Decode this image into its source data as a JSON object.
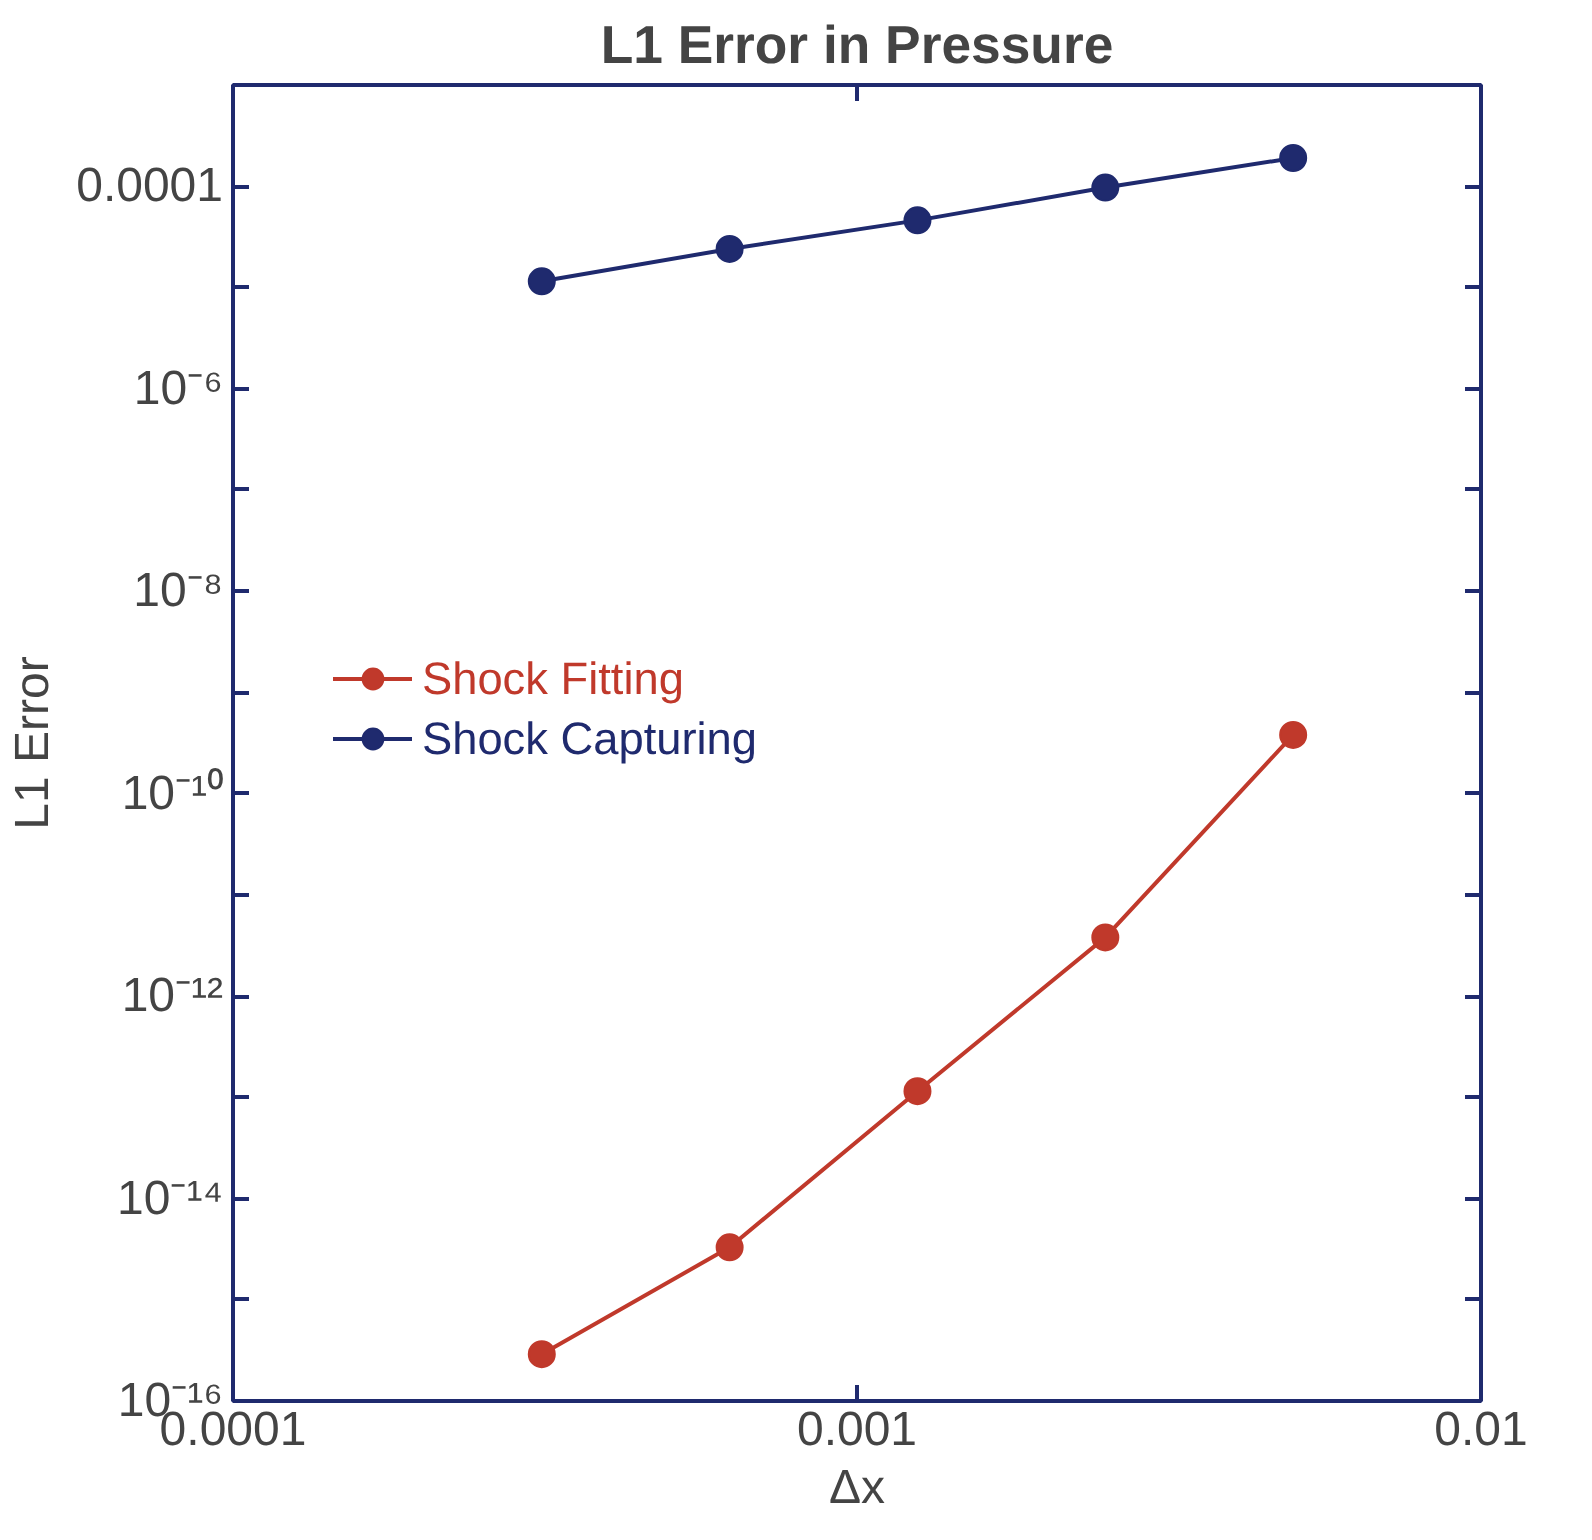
{
  "chart_data": {
    "type": "line",
    "title": "L1 Error in Pressure",
    "xlabel": "Δx",
    "ylabel": "L1 Error",
    "x": [
      0.0003125,
      0.000625,
      0.00125,
      0.0025,
      0.005
    ],
    "series": [
      {
        "name": "Shock Fitting",
        "color": "#c0392b",
        "values": [
          2.9e-16,
          3.3e-15,
          1.15e-13,
          3.8e-12,
          3.8e-10
        ]
      },
      {
        "name": "Shock Capturing",
        "color": "#1f2a6e",
        "values": [
          1.15e-05,
          2.4e-05,
          4.6e-05,
          9.7e-05,
          0.00019
        ]
      }
    ],
    "log": "xy",
    "xlim": [
      0.0001,
      0.01
    ],
    "ylim": [
      1e-16,
      0.001
    ],
    "xticks": [
      0.0001,
      0.001,
      0.01
    ],
    "yticks": [
      {
        "value": 1e-16,
        "label": "10⁻¹⁶"
      },
      {
        "value": 1e-15,
        "label": null
      },
      {
        "value": 1e-14,
        "label": "10⁻¹⁴"
      },
      {
        "value": 1e-13,
        "label": null
      },
      {
        "value": 1e-12,
        "label": "10⁻¹²"
      },
      {
        "value": 1e-11,
        "label": null
      },
      {
        "value": 1e-10,
        "label": "10⁻¹⁰"
      },
      {
        "value": 1e-09,
        "label": null
      },
      {
        "value": 1e-08,
        "label": "10⁻⁸"
      },
      {
        "value": 1e-07,
        "label": null
      },
      {
        "value": 1e-06,
        "label": "10⁻⁶"
      },
      {
        "value": 1e-05,
        "label": null
      },
      {
        "value": 0.0001,
        "label": "0.0001"
      }
    ],
    "grid": false,
    "legend": "left",
    "marker": "circle",
    "line_style": "solid"
  }
}
